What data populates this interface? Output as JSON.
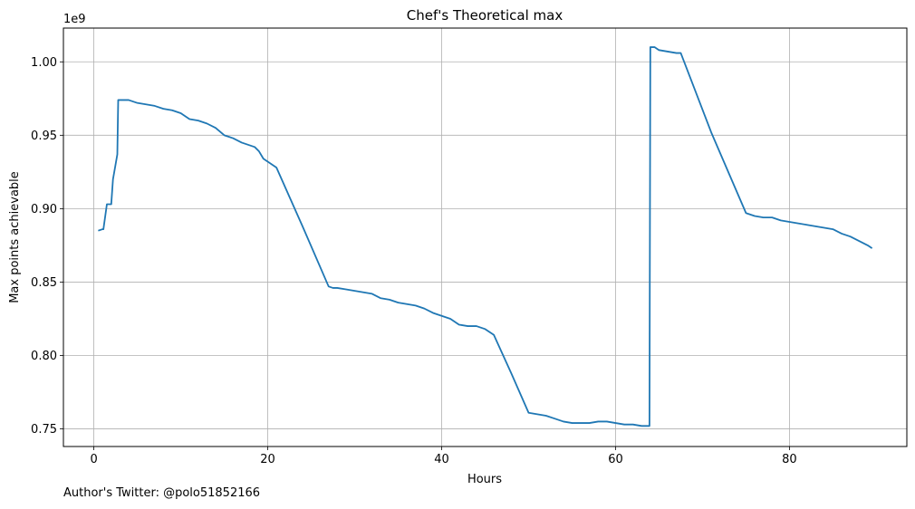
{
  "footnote": "Author's Twitter: @polo51852166",
  "chart_data": {
    "type": "line",
    "title": "Chef's Theoretical max",
    "xlabel": "Hours",
    "ylabel": "Max points achievable",
    "y_offset_label": "1e9",
    "xlim": [
      -3.5,
      93.5
    ],
    "ylim": [
      0.738,
      1.023
    ],
    "grid": true,
    "x_ticks": [
      0,
      20,
      40,
      60,
      80
    ],
    "x_tick_labels": [
      "0",
      "20",
      "40",
      "60",
      "80"
    ],
    "y_ticks": [
      0.75,
      0.8,
      0.85,
      0.9,
      0.95,
      1.0
    ],
    "y_tick_labels": [
      "0.75",
      "0.80",
      "0.85",
      "0.90",
      "0.95",
      "1.00"
    ],
    "line_color": "#1f77b4",
    "series": [
      {
        "x": [
          0.5,
          1.0,
          1.1,
          1.5,
          2.0,
          2.2,
          2.7,
          2.8,
          3.5,
          4.0,
          5.0,
          6.0,
          7.0,
          8.0,
          9.0,
          10.0,
          11.0,
          12.0,
          13.0,
          14.0,
          15.0,
          16.0,
          17.0,
          18.0,
          18.5,
          19.0,
          19.5,
          20.0,
          21.0,
          24.0,
          27.0,
          27.5,
          28.0,
          29.0,
          30.0,
          31.0,
          32.0,
          33.0,
          34.0,
          35.0,
          36.0,
          37.0,
          38.0,
          39.0,
          40.0,
          41.0,
          42.0,
          43.0,
          44.0,
          45.0,
          46.0,
          48.0,
          50.0,
          51.0,
          52.0,
          53.0,
          54.0,
          55.0,
          56.0,
          57.0,
          58.0,
          59.0,
          60.0,
          61.0,
          62.0,
          63.0,
          63.9,
          64.0,
          64.5,
          65.0,
          66.0,
          67.0,
          67.5,
          71.0,
          75.0,
          75.5,
          76.0,
          77.0,
          78.0,
          79.0,
          80.0,
          81.0,
          82.0,
          83.0,
          84.0,
          85.0,
          86.0,
          87.0,
          88.0,
          89.0,
          89.5
        ],
        "y": [
          0.885,
          0.886,
          0.886,
          0.903,
          0.903,
          0.92,
          0.937,
          0.974,
          0.974,
          0.974,
          0.972,
          0.971,
          0.97,
          0.968,
          0.967,
          0.965,
          0.961,
          0.96,
          0.958,
          0.955,
          0.95,
          0.948,
          0.945,
          0.943,
          0.942,
          0.939,
          0.934,
          0.932,
          0.928,
          0.888,
          0.847,
          0.846,
          0.846,
          0.845,
          0.844,
          0.843,
          0.842,
          0.839,
          0.838,
          0.836,
          0.835,
          0.834,
          0.832,
          0.829,
          0.827,
          0.825,
          0.821,
          0.82,
          0.82,
          0.818,
          0.814,
          0.788,
          0.761,
          0.76,
          0.759,
          0.757,
          0.755,
          0.754,
          0.754,
          0.754,
          0.755,
          0.755,
          0.754,
          0.753,
          0.753,
          0.752,
          0.752,
          1.01,
          1.01,
          1.008,
          1.007,
          1.006,
          1.006,
          0.952,
          0.897,
          0.896,
          0.895,
          0.894,
          0.894,
          0.892,
          0.891,
          0.89,
          0.889,
          0.888,
          0.887,
          0.886,
          0.883,
          0.881,
          0.878,
          0.875,
          0.873
        ]
      }
    ]
  }
}
